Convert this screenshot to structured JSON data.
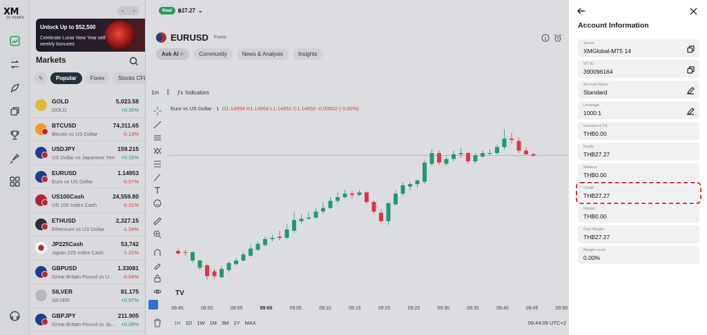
{
  "brand": {
    "logo_text": "XM",
    "logo_sub": "15 YEARS"
  },
  "rail": {
    "icons": [
      "chart-icon",
      "transfer-icon",
      "rocket-icon",
      "copy-icon",
      "trophy-icon",
      "launch-icon",
      "apps-icon",
      "support-icon"
    ]
  },
  "markets": {
    "banner_title": "Unlock Up to $52,500",
    "banner_text": "Celebrate Lunar New Year with weekly bonuses",
    "banner_nav_prev": "‹",
    "banner_nav_next": "›",
    "title": "Markets",
    "tabs": [
      "Popular",
      "Forex",
      "Stocks CFDs"
    ],
    "active_tab": "Popular",
    "items": [
      {
        "symbol": "GOLD",
        "desc": "GOLD",
        "price": "5,023.58",
        "change": "+0.35%",
        "dir": "up",
        "color": "#e2b93b"
      },
      {
        "symbol": "BTCUSD",
        "desc": "Bitcoin vs US Dollar",
        "price": "74,311.65",
        "change": "-0.13%",
        "dir": "down",
        "color": "#f29a1e"
      },
      {
        "symbol": "USDJPY",
        "desc": "US Dollar vs Japanese Yen",
        "price": "159.215",
        "change": "+0.15%",
        "dir": "up",
        "color": "#1e3d8f"
      },
      {
        "symbol": "EURUSD",
        "desc": "Euro vs US Dollar",
        "price": "1.14953",
        "change": "-0.07%",
        "dir": "down",
        "color": "#1e3d8f"
      },
      {
        "symbol": "US100Cash",
        "desc": "US 100 Index Cash",
        "price": "24,559.80",
        "change": "-0.31%",
        "dir": "down",
        "color": "#b22234"
      },
      {
        "symbol": "ETHUSD",
        "desc": "Ethereum vs US Dollar",
        "price": "2,327.15",
        "change": "-1.34%",
        "dir": "down",
        "color": "#2b2f3a"
      },
      {
        "symbol": "JP225Cash",
        "desc": "Japan 225 Index Cash",
        "price": "53,742",
        "change": "-1.22%",
        "dir": "down",
        "color": "#ffffff"
      },
      {
        "symbol": "GBPUSD",
        "desc": "Great Britain Pound vs US Dollar",
        "price": "1.33081",
        "change": "-0.04%",
        "dir": "down",
        "color": "#1e3d8f"
      },
      {
        "symbol": "SILVER",
        "desc": "SILVER",
        "price": "81.175",
        "change": "+0.57%",
        "dir": "up",
        "color": "#b8b9bd"
      },
      {
        "symbol": "GBPJPY",
        "desc": "Great Britain Pound vs Japanese Yen",
        "price": "211.905",
        "change": "+0.08%",
        "dir": "up",
        "color": "#1e3d8f"
      }
    ]
  },
  "chart": {
    "account_badge": "Real",
    "account_balance": "฿27.27",
    "symbol": "EURUSD",
    "symbol_type": "Forex",
    "chips": [
      "Ask AI",
      "Community",
      "News & Analysis",
      "Insights"
    ],
    "interval": "1m",
    "indicators_label": "Indicators",
    "legend_title": "Euro vs US Dollar · 1",
    "legend_o": "O1.14954",
    "legend_h": "H1.14954",
    "legend_l": "L1.14952",
    "legend_c": "C1.14953",
    "legend_chg": "-0.00002 (-0.00%)",
    "ranges": [
      "1H",
      "1D",
      "1W",
      "1M",
      "3M",
      "1Y",
      "MAX"
    ],
    "active_range": "1H",
    "clock": "09:44:09 UTC+2",
    "tv_logo": "TV"
  },
  "chart_data": {
    "type": "candlestick",
    "x_ticks": [
      "08:45",
      "08:50",
      "08:55",
      "09:00",
      "09:05",
      "09:10",
      "09:15",
      "09:20",
      "09:25",
      "09:30",
      "09:35",
      "09:40",
      "09:45",
      "09:50"
    ],
    "bold_tick": "09:00",
    "last_price_line": true,
    "candles": [
      [
        0,
        68,
        66,
        65,
        70
      ],
      [
        0,
        67,
        67,
        64,
        69
      ],
      [
        1,
        67,
        60,
        58,
        68
      ],
      [
        1,
        60,
        54,
        52,
        61
      ],
      [
        0,
        56,
        47,
        44,
        57
      ],
      [
        0,
        51,
        47,
        45,
        53
      ],
      [
        1,
        46,
        53,
        45,
        55
      ],
      [
        1,
        52,
        58,
        50,
        59
      ],
      [
        1,
        57,
        60,
        56,
        62
      ],
      [
        1,
        60,
        65,
        59,
        67
      ],
      [
        1,
        64,
        70,
        63,
        73
      ],
      [
        1,
        69,
        74,
        68,
        76
      ],
      [
        1,
        73,
        78,
        72,
        80
      ],
      [
        1,
        78,
        79,
        76,
        82
      ],
      [
        0,
        80,
        79,
        77,
        85
      ],
      [
        1,
        79,
        86,
        78,
        91
      ],
      [
        1,
        85,
        94,
        83,
        101
      ],
      [
        1,
        93,
        95,
        91,
        99
      ],
      [
        1,
        95,
        96,
        94,
        100
      ],
      [
        1,
        96,
        101,
        95,
        104
      ],
      [
        1,
        101,
        104,
        99,
        109
      ],
      [
        1,
        104,
        110,
        103,
        113
      ],
      [
        1,
        110,
        113,
        108,
        117
      ],
      [
        1,
        113,
        116,
        112,
        119
      ],
      [
        0,
        116,
        115,
        112,
        118
      ],
      [
        1,
        115,
        117,
        114,
        119
      ],
      [
        0,
        117,
        109,
        107,
        118
      ],
      [
        0,
        109,
        101,
        99,
        110
      ],
      [
        0,
        100,
        93,
        91,
        103
      ],
      [
        1,
        93,
        108,
        90,
        109
      ],
      [
        1,
        107,
        116,
        106,
        119
      ],
      [
        1,
        116,
        123,
        114,
        126
      ],
      [
        1,
        122,
        124,
        119,
        126
      ],
      [
        1,
        124,
        127,
        121,
        128
      ],
      [
        1,
        126,
        142,
        124,
        144
      ],
      [
        1,
        141,
        150,
        139,
        153
      ],
      [
        0,
        150,
        142,
        140,
        152
      ],
      [
        1,
        141,
        145,
        139,
        147
      ],
      [
        1,
        145,
        149,
        143,
        152
      ],
      [
        1,
        149,
        150,
        146,
        154
      ],
      [
        0,
        150,
        143,
        141,
        151
      ],
      [
        1,
        143,
        148,
        141,
        150
      ],
      [
        1,
        147,
        150,
        146,
        152
      ],
      [
        1,
        150,
        150,
        148,
        153
      ],
      [
        1,
        150,
        155,
        149,
        157
      ],
      [
        1,
        155,
        162,
        153,
        170
      ],
      [
        0,
        162,
        161,
        158,
        167
      ],
      [
        0,
        160,
        152,
        150,
        163
      ],
      [
        0,
        152,
        149,
        148,
        155
      ],
      [
        0,
        149,
        148,
        147,
        150
      ]
    ]
  },
  "account": {
    "title": "Account Information",
    "fields": [
      {
        "label": "Server",
        "value": "XMGlobal-MT5 14",
        "icon": "copy-icon"
      },
      {
        "label": "MT ID",
        "value": "390096164",
        "icon": "copy-icon"
      },
      {
        "label": "Account Name",
        "value": "Standard",
        "icon": "edit-icon"
      },
      {
        "label": "Leverage",
        "value": "1000:1",
        "icon": "edit-icon"
      },
      {
        "label": "Unrealized P/L",
        "value": "THB0.00",
        "icon": ""
      },
      {
        "label": "Equity",
        "value": "THB27.27",
        "icon": ""
      },
      {
        "label": "Balance",
        "value": "THB0.00",
        "icon": ""
      },
      {
        "label": "Credit",
        "value": "THB27.27",
        "icon": "",
        "highlight": true
      },
      {
        "label": "Margin",
        "value": "THB0.00",
        "icon": ""
      },
      {
        "label": "Free Margin",
        "value": "THB27.27",
        "icon": ""
      },
      {
        "label": "Margin Level",
        "value": "0.00%",
        "icon": ""
      }
    ]
  }
}
